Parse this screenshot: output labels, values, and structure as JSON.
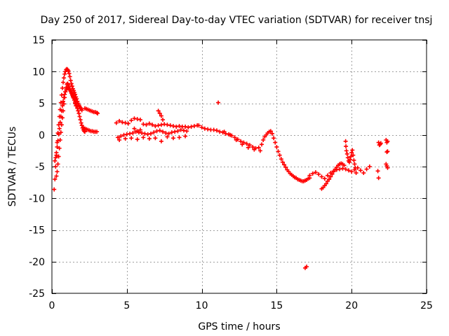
{
  "chart_data": {
    "type": "scatter",
    "title": "Day 250 of 2017, Sidereal Day-to-day VTEC variation (SDTVAR) for receiver tnsj",
    "xlabel": "GPS time / hours",
    "ylabel": "SDTVAR / TECUs",
    "xlim": [
      0,
      25
    ],
    "ylim": [
      -25,
      15
    ],
    "xticks": [
      "0",
      "5",
      "10",
      "15",
      "20",
      "25"
    ],
    "yticks": [
      "15",
      "10",
      "5",
      "0",
      "-5",
      "-10",
      "-15",
      "-20",
      "-25"
    ],
    "grid": true,
    "marker": "plus",
    "color": "#ff0000",
    "series": [
      {
        "name": "SDTVAR",
        "x": [
          0.15,
          0.2,
          0.25,
          0.3,
          0.35,
          0.4,
          0.45,
          0.5,
          0.55,
          0.6,
          0.65,
          0.7,
          0.75,
          0.8,
          0.85,
          0.9,
          0.95,
          1.0,
          1.05,
          1.1,
          1.15,
          1.2,
          1.25,
          1.3,
          1.35,
          1.4,
          1.45,
          1.5,
          1.55,
          1.6,
          1.65,
          1.7,
          1.75,
          1.8,
          1.85,
          1.9,
          1.95,
          2.0,
          0.3,
          0.35,
          0.4,
          0.45,
          0.5,
          0.55,
          0.6,
          0.65,
          0.7,
          0.75,
          0.8,
          0.85,
          0.9,
          0.95,
          1.0,
          1.05,
          1.1,
          1.15,
          1.2,
          1.25,
          1.3,
          1.35,
          1.4,
          1.45,
          1.5,
          1.55,
          1.6,
          1.65,
          1.7,
          1.75,
          1.8,
          1.85,
          1.9,
          1.95,
          2.0,
          2.05,
          2.1,
          2.15,
          2.2,
          0.2,
          0.25,
          0.3,
          0.35,
          0.4,
          0.45,
          0.5,
          0.55,
          0.6,
          0.65,
          0.7,
          0.75,
          0.8,
          0.85,
          0.9,
          0.95,
          1.0,
          1.05,
          1.1,
          1.15,
          1.2,
          1.25,
          1.3,
          1.35,
          1.4,
          1.45,
          1.5,
          1.55,
          1.6,
          2.2,
          2.3,
          2.4,
          2.5,
          2.6,
          2.7,
          2.8,
          2.9,
          3.0,
          3.05,
          2.1,
          2.2,
          2.3,
          2.4,
          2.5,
          2.6,
          2.7,
          2.8,
          2.9,
          3.0,
          4.3,
          4.5,
          4.7,
          4.9,
          5.1,
          5.3,
          5.5,
          5.7,
          5.9,
          6.1,
          6.3,
          6.5,
          6.7,
          6.9,
          7.1,
          7.3,
          7.5,
          7.7,
          7.9,
          8.1,
          8.3,
          8.5,
          8.7,
          8.9,
          9.1,
          9.3,
          9.5,
          9.7,
          4.4,
          4.6,
          4.8,
          5.0,
          5.2,
          5.4,
          5.6,
          5.8,
          6.0,
          6.2,
          6.4,
          6.6,
          6.8,
          7.0,
          7.2,
          7.4,
          7.6,
          7.8,
          8.0,
          8.2,
          8.4,
          8.6,
          8.8,
          9.0,
          4.5,
          4.9,
          5.3,
          5.7,
          6.1,
          6.5,
          6.9,
          7.3,
          7.7,
          8.1,
          8.5,
          8.9,
          5.5,
          5.7,
          5.9,
          7.1,
          7.2,
          7.3,
          7.4,
          9.8,
          10.0,
          10.2,
          10.4,
          10.6,
          10.8,
          11.0,
          11.2,
          11.4,
          11.6,
          11.8,
          12.0,
          12.2,
          12.4,
          12.6,
          12.8,
          13.0,
          13.2,
          13.4,
          13.6,
          13.8,
          14.0,
          14.1,
          14.2,
          14.3,
          14.4,
          14.5,
          14.6,
          14.7,
          14.8,
          14.9,
          15.0,
          15.1,
          15.2,
          15.3,
          15.4,
          15.5,
          15.6,
          15.7,
          15.8,
          15.9,
          16.0,
          16.1,
          16.2,
          16.3,
          16.4,
          16.5,
          16.6,
          16.7,
          16.8,
          16.9,
          17.0,
          17.1,
          17.2,
          11.5,
          11.9,
          12.3,
          12.7,
          13.1,
          13.5,
          13.9,
          17.2,
          17.4,
          17.6,
          17.8,
          18.0,
          18.2,
          18.4,
          18.6,
          18.8,
          19.0,
          19.2,
          19.4,
          19.6,
          19.8,
          20.0,
          20.2,
          20.4,
          20.6,
          20.8,
          21.0,
          21.2,
          18.0,
          18.1,
          18.2,
          18.3,
          18.4,
          18.5,
          18.6,
          18.7,
          18.8,
          18.9,
          19.0,
          19.1,
          19.2,
          19.3,
          19.4,
          19.5,
          19.6,
          19.62,
          19.65,
          19.7,
          19.75,
          19.8,
          19.85,
          19.9,
          19.95,
          20.0,
          20.05,
          20.1,
          20.15,
          20.2,
          20.25,
          20.3,
          21.8,
          21.85,
          21.9,
          21.95,
          21.75,
          21.8,
          22.3,
          22.35,
          22.4,
          22.3,
          22.35,
          22.4,
          22.35,
          22.4,
          11.1,
          16.9,
          17.0
        ],
        "y": [
          -8.6,
          -7.0,
          -5.0,
          -3.2,
          -1.2,
          0.3,
          1.6,
          2.9,
          4.0,
          5.1,
          6.3,
          7.4,
          8.3,
          9.0,
          9.6,
          10.0,
          10.3,
          10.4,
          10.3,
          10.1,
          9.7,
          9.2,
          8.6,
          8.1,
          7.7,
          7.3,
          7.0,
          6.7,
          6.4,
          6.0,
          5.7,
          5.3,
          5.0,
          4.7,
          4.5,
          4.3,
          4.1,
          3.9,
          -6.5,
          -5.8,
          -4.6,
          -3.4,
          -2.1,
          -0.8,
          0.4,
          1.6,
          2.7,
          3.8,
          4.9,
          5.9,
          6.8,
          7.5,
          8.0,
          8.1,
          7.9,
          7.6,
          7.2,
          6.9,
          6.6,
          6.3,
          6.0,
          5.8,
          5.5,
          5.2,
          4.9,
          4.6,
          4.2,
          3.8,
          3.4,
          2.9,
          2.4,
          1.9,
          1.5,
          1.1,
          0.8,
          0.6,
          0.5,
          -4.1,
          -3.6,
          -2.8,
          -1.9,
          -0.9,
          0.1,
          1.0,
          2.0,
          2.9,
          3.8,
          4.6,
          5.3,
          5.9,
          6.4,
          6.8,
          7.1,
          7.3,
          7.4,
          7.4,
          7.3,
          7.1,
          6.9,
          6.7,
          6.5,
          6.2,
          5.9,
          5.5,
          5.0,
          4.6,
          4.2,
          4.1,
          4.0,
          3.9,
          3.8,
          3.7,
          3.6,
          3.6,
          3.5,
          3.4,
          1.2,
          1.0,
          0.9,
          0.8,
          0.7,
          0.6,
          0.6,
          0.5,
          0.5,
          0.5,
          1.9,
          2.2,
          2.0,
          1.9,
          1.8,
          2.3,
          2.6,
          2.5,
          2.4,
          1.7,
          1.6,
          1.8,
          1.6,
          1.4,
          1.5,
          1.6,
          1.7,
          1.6,
          1.5,
          1.4,
          1.3,
          1.4,
          1.3,
          1.3,
          1.2,
          1.3,
          1.4,
          1.5,
          -0.4,
          -0.2,
          0.0,
          0.1,
          0.2,
          0.3,
          0.5,
          0.4,
          0.3,
          0.2,
          0.1,
          0.2,
          0.4,
          0.6,
          0.7,
          0.5,
          0.3,
          0.2,
          0.4,
          0.5,
          0.6,
          0.8,
          0.7,
          0.6,
          -0.8,
          -0.6,
          -0.5,
          -0.7,
          -0.4,
          -0.6,
          -0.5,
          -1.0,
          -0.3,
          -0.5,
          -0.4,
          -0.2,
          1.0,
          0.6,
          0.8,
          3.8,
          3.4,
          3.0,
          2.4,
          1.5,
          1.2,
          1.0,
          0.9,
          0.8,
          0.8,
          0.7,
          0.5,
          0.4,
          0.2,
          0.1,
          -0.1,
          -0.4,
          -0.7,
          -1.0,
          -1.2,
          -1.4,
          -1.6,
          -1.9,
          -2.1,
          -2.0,
          -1.5,
          -0.8,
          -0.3,
          0.0,
          0.3,
          0.5,
          0.6,
          0.2,
          -0.5,
          -1.2,
          -1.9,
          -2.6,
          -3.2,
          -3.8,
          -4.3,
          -4.7,
          -5.1,
          -5.5,
          -5.8,
          -6.1,
          -6.3,
          -6.5,
          -6.7,
          -6.8,
          -7.0,
          -7.1,
          -7.2,
          -7.3,
          -7.3,
          -7.2,
          -7.1,
          -6.9,
          -6.8,
          0.5,
          0.0,
          -0.8,
          -1.5,
          -2.0,
          -2.3,
          -2.5,
          -6.4,
          -6.1,
          -5.9,
          -6.2,
          -6.6,
          -6.9,
          -6.4,
          -6.0,
          -5.7,
          -5.5,
          -5.4,
          -5.3,
          -5.4,
          -5.6,
          -5.8,
          -5.5,
          -5.2,
          -5.6,
          -6.0,
          -5.4,
          -5.0,
          -8.5,
          -8.3,
          -8.0,
          -7.7,
          -7.3,
          -7.0,
          -6.6,
          -6.2,
          -5.8,
          -5.4,
          -5.1,
          -4.8,
          -4.6,
          -4.5,
          -4.6,
          -4.8,
          -1.0,
          -1.8,
          -2.5,
          -3.0,
          -3.6,
          -4.1,
          -4.3,
          -3.9,
          -3.4,
          -2.8,
          -2.4,
          -3.2,
          -4.0,
          -4.6,
          -5.2,
          -6.0,
          -1.2,
          -1.6,
          -1.5,
          -1.3,
          -5.7,
          -6.8,
          -0.8,
          -1.2,
          -1.0,
          -4.6,
          -4.9,
          -5.2,
          -2.7,
          -2.6,
          5.1,
          -21.0,
          -20.8
        ]
      }
    ]
  }
}
